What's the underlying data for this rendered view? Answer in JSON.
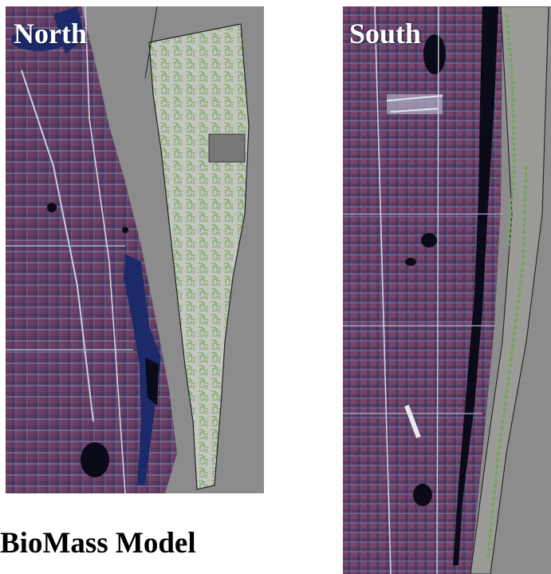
{
  "figure": {
    "title": "BioMass Model",
    "panels": [
      {
        "id": "north",
        "label": "North"
      },
      {
        "id": "south",
        "label": "South"
      }
    ]
  },
  "colors": {
    "urban_land": "#5a3a5e",
    "urban_highlight": "#8a4a6a",
    "water_dark": "#0a0a18",
    "lagoon_blue": "#1c2a6a",
    "ocean_gray": "#8c8c8c",
    "biomass_zone": "#c4c4c0",
    "biomass_polygons": "#6aa84f",
    "outline": "#222222"
  }
}
